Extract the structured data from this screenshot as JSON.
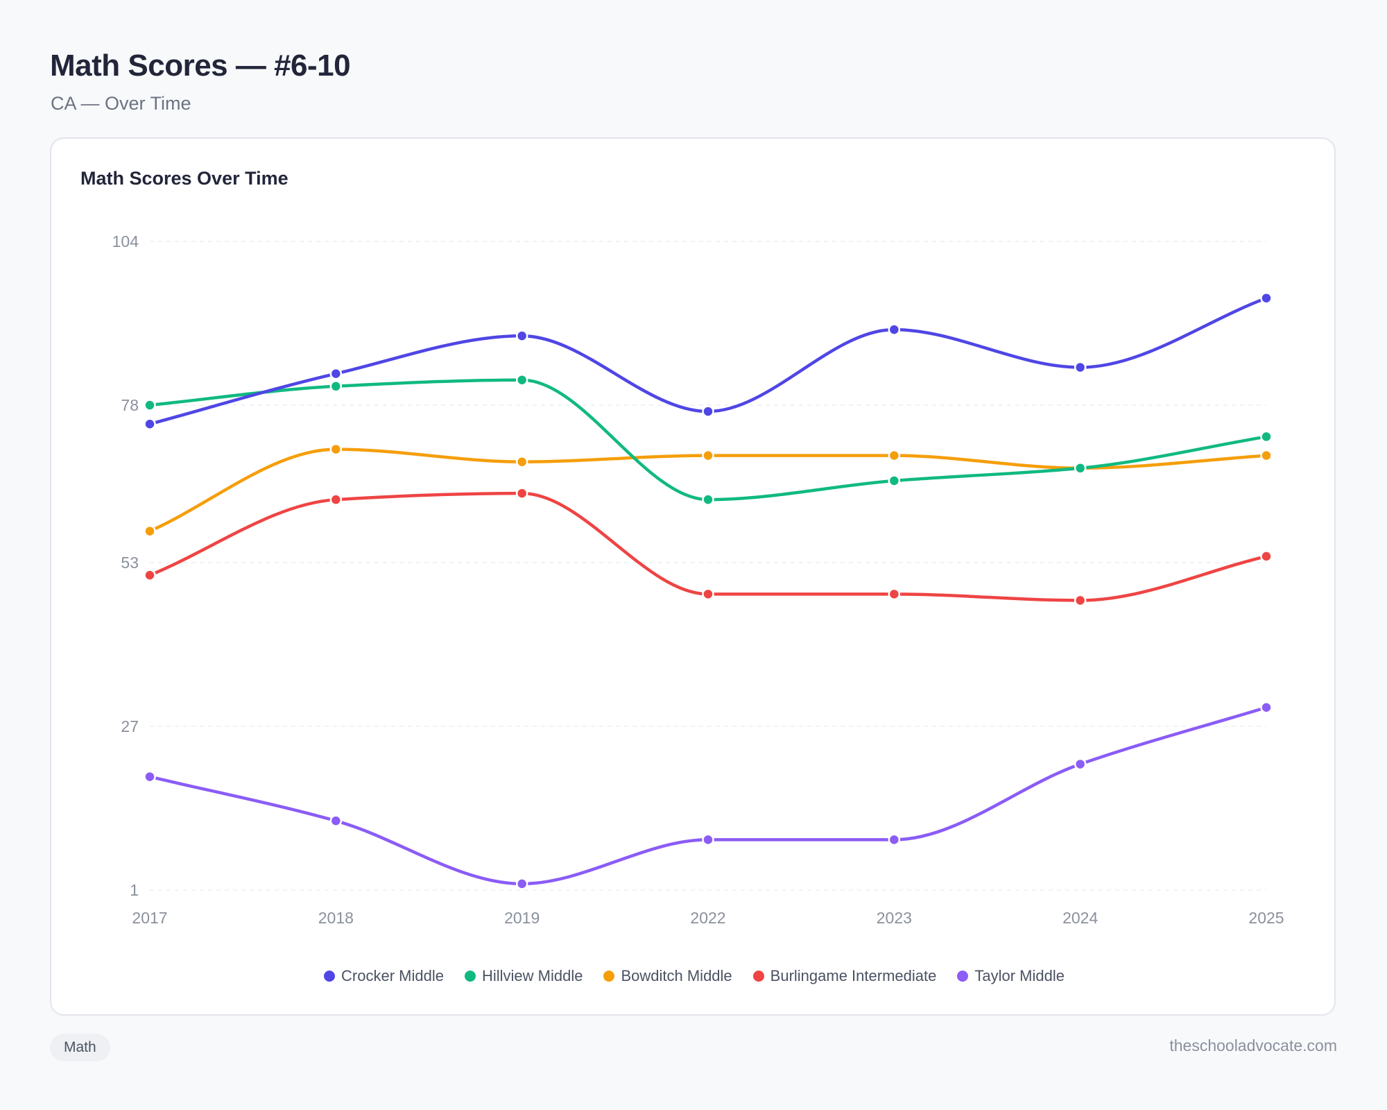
{
  "page": {
    "title": "Math Scores — #6-10",
    "subtitle": "CA — Over Time"
  },
  "card": {
    "title": "Math Scores Over Time"
  },
  "footer": {
    "tag": "Math",
    "source": "theschooladvocate.com"
  },
  "chart_data": {
    "type": "line",
    "title": "Math Scores Over Time",
    "xlabel": "",
    "ylabel": "",
    "x": [
      "2017",
      "2018",
      "2019",
      "2022",
      "2023",
      "2024",
      "2025"
    ],
    "yticks": [
      1,
      27,
      53,
      78,
      104
    ],
    "ylim": [
      1,
      104
    ],
    "grid": true,
    "legend_position": "bottom",
    "curve": "smooth",
    "series": [
      {
        "name": "Crocker Middle",
        "color": "#4f46e5",
        "values": [
          75,
          83,
          89,
          77,
          90,
          84,
          95
        ]
      },
      {
        "name": "Hillview Middle",
        "color": "#10b981",
        "values": [
          78,
          81,
          82,
          63,
          66,
          68,
          73
        ]
      },
      {
        "name": "Bowditch Middle",
        "color": "#f59e0b",
        "values": [
          58,
          71,
          69,
          70,
          70,
          68,
          70
        ]
      },
      {
        "name": "Burlingame Intermediate",
        "color": "#ef4444",
        "values": [
          51,
          63,
          64,
          48,
          48,
          47,
          54
        ]
      },
      {
        "name": "Taylor Middle",
        "color": "#8b5cf6",
        "values": [
          19,
          12,
          2,
          9,
          9,
          21,
          30
        ]
      }
    ]
  }
}
